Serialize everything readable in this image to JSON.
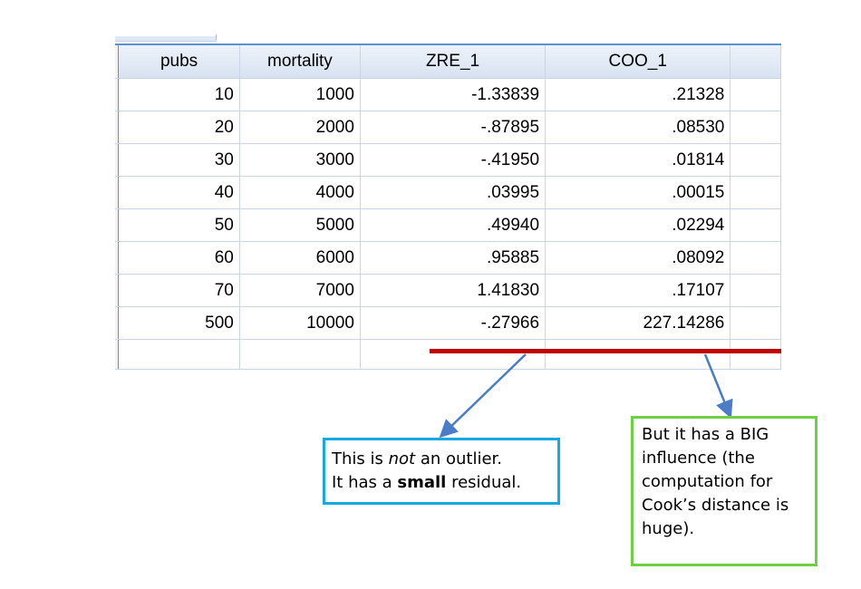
{
  "table": {
    "columns": [
      "pubs",
      "mortality",
      "ZRE_1",
      "COO_1"
    ],
    "rows": [
      {
        "pubs": "10",
        "mortality": "1000",
        "zre": "-1.33839",
        "coo": ".21328"
      },
      {
        "pubs": "20",
        "mortality": "2000",
        "zre": "-.87895",
        "coo": ".08530"
      },
      {
        "pubs": "30",
        "mortality": "3000",
        "zre": "-.41950",
        "coo": ".01814"
      },
      {
        "pubs": "40",
        "mortality": "4000",
        "zre": ".03995",
        "coo": ".00015"
      },
      {
        "pubs": "50",
        "mortality": "5000",
        "zre": ".49940",
        "coo": ".02294"
      },
      {
        "pubs": "60",
        "mortality": "6000",
        "zre": ".95885",
        "coo": ".08092"
      },
      {
        "pubs": "70",
        "mortality": "7000",
        "zre": "1.41830",
        "coo": ".17107"
      },
      {
        "pubs": "500",
        "mortality": "10000",
        "zre": "-.27966",
        "coo": "227.14286"
      }
    ]
  },
  "callout_left": {
    "line1_pre": "This is ",
    "line1_em": "not",
    "line1_post": " an outlier.",
    "line2_pre": "It has a ",
    "line2_strong": "small",
    "line2_post": " residual."
  },
  "callout_right": {
    "lines": [
      "But it has a BIG",
      "influence (the",
      "computation for",
      "Cook’s distance is",
      "huge)."
    ]
  },
  "colors": {
    "highlight_line": "#c00000",
    "arrow": "#4a7cc7",
    "callout_left_border": "#17a9e1",
    "callout_right_border": "#6fd044"
  }
}
